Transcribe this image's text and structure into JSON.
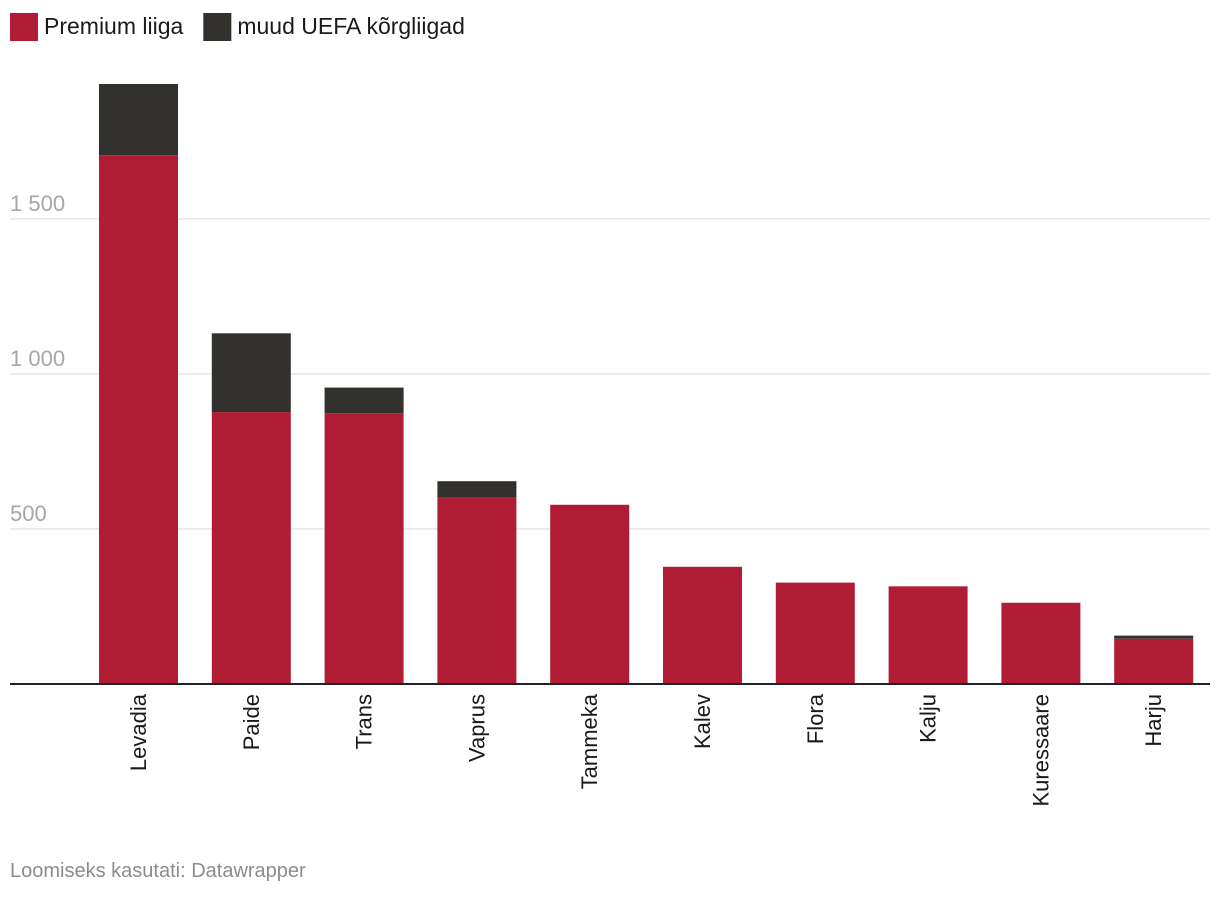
{
  "chart_data": {
    "type": "bar",
    "stacked": true,
    "categories": [
      "Levadia",
      "Paide",
      "Trans",
      "Vaprus",
      "Tammeka",
      "Kalev",
      "Flora",
      "Kalju",
      "Kuressaare",
      "Harju"
    ],
    "series": [
      {
        "name": "Premium liiga",
        "color": "#b01c33",
        "values": [
          1705,
          877,
          873,
          601,
          578,
          378,
          327,
          315,
          262,
          146
        ]
      },
      {
        "name": "muud UEFA kõrgliigad",
        "color": "#32312d",
        "values": [
          230,
          254,
          83,
          53,
          0,
          0,
          0,
          0,
          0,
          10
        ]
      }
    ],
    "yticks": [
      500,
      1000,
      1500
    ],
    "ytick_labels": [
      "500",
      "1 000",
      "1 500"
    ],
    "ylim": [
      0,
      1935
    ],
    "grid": true,
    "legend_position": "top-left"
  },
  "credit": "Loomiseks kasutati: Datawrapper"
}
